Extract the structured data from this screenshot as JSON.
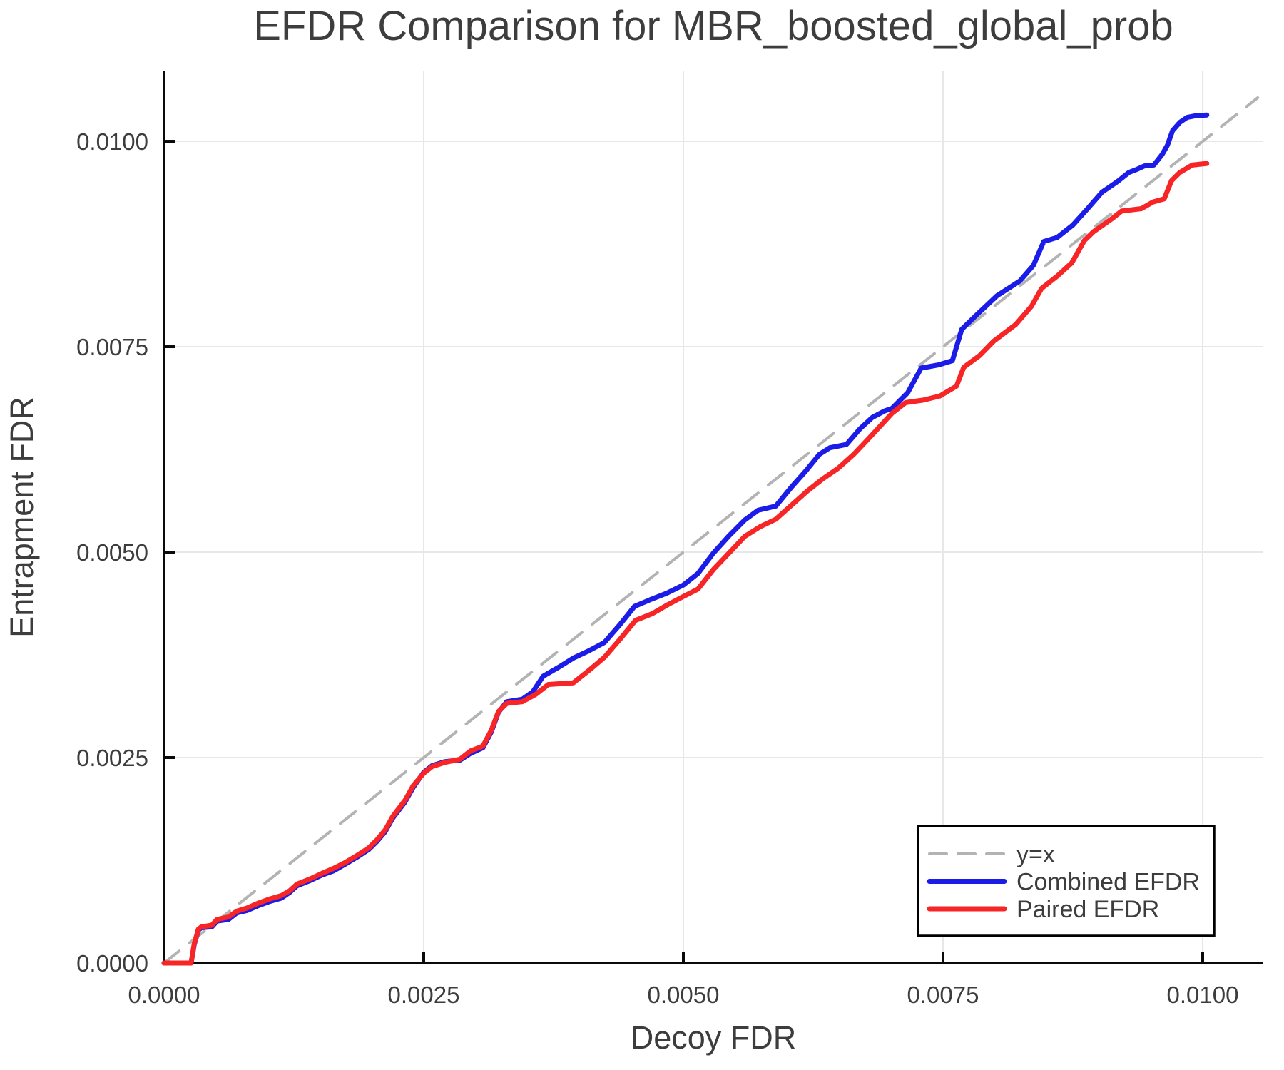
{
  "chart_data": {
    "type": "line",
    "title": "EFDR Comparison for MBR_boosted_global_prob",
    "xlabel": "Decoy FDR",
    "ylabel": "Entrapment FDR",
    "xlim": [
      0,
      0.010577
    ],
    "ylim": [
      0,
      0.010851
    ],
    "grid": true,
    "x_ticks": [
      0,
      0.0025,
      0.005,
      0.0075,
      0.01
    ],
    "x_tick_labels": [
      "0.0000",
      "0.0025",
      "0.0050",
      "0.0075",
      "0.0100"
    ],
    "y_ticks": [
      0,
      0.0025,
      0.005,
      0.0075,
      0.01
    ],
    "y_tick_labels": [
      "0.0000",
      "0.0025",
      "0.0050",
      "0.0075",
      "0.0100"
    ],
    "colors": {
      "text": "#3d3d3d",
      "spine": "#0a0a0a",
      "grid": "#e7e7e7",
      "legend_border": "#000000",
      "legend_background": "#ffffff"
    },
    "legend": {
      "position": "lower right",
      "entries": [
        {
          "label": "y=x",
          "series_index": 0
        },
        {
          "label": "Combined EFDR",
          "series_index": 1
        },
        {
          "label": "Paired EFDR",
          "series_index": 2
        }
      ]
    },
    "series": [
      {
        "name": "y=x",
        "style": "dashed",
        "color": "#b3b3b3",
        "points": [
          [
            0,
            0
          ],
          [
            0.01053,
            0.01053
          ]
        ]
      },
      {
        "name": "Combined EFDR",
        "style": "solid",
        "color": "#1c1ce8",
        "points": [
          [
            0.0,
            0.0
          ],
          [
            0.00026,
            0.0
          ],
          [
            0.00029,
            0.00022
          ],
          [
            0.00033,
            0.0004
          ],
          [
            0.00036,
            0.00043
          ],
          [
            0.00046,
            0.00044
          ],
          [
            0.00051,
            0.00051
          ],
          [
            0.00062,
            0.00053
          ],
          [
            0.0007,
            0.00061
          ],
          [
            0.0008,
            0.00064
          ],
          [
            0.00091,
            0.0007
          ],
          [
            0.00102,
            0.00075
          ],
          [
            0.00113,
            0.00079
          ],
          [
            0.00121,
            0.00086
          ],
          [
            0.00128,
            0.00094
          ],
          [
            0.0014,
            0.001
          ],
          [
            0.00152,
            0.00107
          ],
          [
            0.00163,
            0.00112
          ],
          [
            0.00174,
            0.0012
          ],
          [
            0.00186,
            0.00129
          ],
          [
            0.00197,
            0.00138
          ],
          [
            0.00205,
            0.00148
          ],
          [
            0.00213,
            0.0016
          ],
          [
            0.0022,
            0.00176
          ],
          [
            0.00232,
            0.00196
          ],
          [
            0.0024,
            0.00214
          ],
          [
            0.0025,
            0.00232
          ],
          [
            0.00258,
            0.0024
          ],
          [
            0.0027,
            0.00245
          ],
          [
            0.00285,
            0.00247
          ],
          [
            0.00295,
            0.00255
          ],
          [
            0.00307,
            0.00262
          ],
          [
            0.00315,
            0.00281
          ],
          [
            0.00322,
            0.00305
          ],
          [
            0.0033,
            0.00318
          ],
          [
            0.00345,
            0.00321
          ],
          [
            0.00355,
            0.0033
          ],
          [
            0.00365,
            0.00349
          ],
          [
            0.0038,
            0.0036
          ],
          [
            0.00394,
            0.00371
          ],
          [
            0.00409,
            0.0038
          ],
          [
            0.00424,
            0.0039
          ],
          [
            0.00439,
            0.00412
          ],
          [
            0.00453,
            0.00434
          ],
          [
            0.00468,
            0.00442
          ],
          [
            0.00484,
            0.0045
          ],
          [
            0.005,
            0.0046
          ],
          [
            0.00514,
            0.00474
          ],
          [
            0.00529,
            0.00499
          ],
          [
            0.00544,
            0.0052
          ],
          [
            0.00559,
            0.00539
          ],
          [
            0.00572,
            0.00551
          ],
          [
            0.00589,
            0.00556
          ],
          [
            0.00604,
            0.00579
          ],
          [
            0.00618,
            0.00599
          ],
          [
            0.00631,
            0.00619
          ],
          [
            0.00641,
            0.00627
          ],
          [
            0.00657,
            0.00631
          ],
          [
            0.0067,
            0.0065
          ],
          [
            0.00682,
            0.00664
          ],
          [
            0.00694,
            0.00672
          ],
          [
            0.00701,
            0.00675
          ],
          [
            0.00716,
            0.00694
          ],
          [
            0.00729,
            0.00724
          ],
          [
            0.00746,
            0.00728
          ],
          [
            0.00759,
            0.00733
          ],
          [
            0.00768,
            0.00771
          ],
          [
            0.00781,
            0.00787
          ],
          [
            0.00802,
            0.00812
          ],
          [
            0.00824,
            0.0083
          ],
          [
            0.00837,
            0.00849
          ],
          [
            0.00847,
            0.00878
          ],
          [
            0.0086,
            0.00883
          ],
          [
            0.00875,
            0.00898
          ],
          [
            0.0089,
            0.00919
          ],
          [
            0.00903,
            0.00938
          ],
          [
            0.00918,
            0.00951
          ],
          [
            0.00929,
            0.00962
          ],
          [
            0.00937,
            0.00966
          ],
          [
            0.00944,
            0.0097
          ],
          [
            0.00953,
            0.00971
          ],
          [
            0.00961,
            0.00984
          ],
          [
            0.00966,
            0.00995
          ],
          [
            0.00971,
            0.01013
          ],
          [
            0.00978,
            0.01023
          ],
          [
            0.00985,
            0.01029
          ],
          [
            0.00993,
            0.01031
          ],
          [
            0.01004,
            0.01032
          ]
        ]
      },
      {
        "name": "Paired EFDR",
        "style": "solid",
        "color": "#f72525",
        "points": [
          [
            0.0,
            0.0
          ],
          [
            0.00026,
            0.0
          ],
          [
            0.00029,
            0.00023
          ],
          [
            0.00033,
            0.00041
          ],
          [
            0.00036,
            0.00044
          ],
          [
            0.00046,
            0.00046
          ],
          [
            0.00051,
            0.00053
          ],
          [
            0.00062,
            0.00056
          ],
          [
            0.0007,
            0.00063
          ],
          [
            0.0008,
            0.00067
          ],
          [
            0.00091,
            0.00073
          ],
          [
            0.00102,
            0.00078
          ],
          [
            0.00113,
            0.00082
          ],
          [
            0.00121,
            0.00088
          ],
          [
            0.00128,
            0.00096
          ],
          [
            0.0014,
            0.00102
          ],
          [
            0.00152,
            0.00109
          ],
          [
            0.00163,
            0.00115
          ],
          [
            0.00174,
            0.00122
          ],
          [
            0.00186,
            0.00131
          ],
          [
            0.00197,
            0.0014
          ],
          [
            0.00205,
            0.0015
          ],
          [
            0.00213,
            0.00162
          ],
          [
            0.0022,
            0.00178
          ],
          [
            0.00232,
            0.00198
          ],
          [
            0.0024,
            0.00216
          ],
          [
            0.0025,
            0.00231
          ],
          [
            0.00258,
            0.00239
          ],
          [
            0.0027,
            0.00244
          ],
          [
            0.00285,
            0.00248
          ],
          [
            0.00295,
            0.00258
          ],
          [
            0.00307,
            0.00264
          ],
          [
            0.00315,
            0.00283
          ],
          [
            0.00322,
            0.00306
          ],
          [
            0.0033,
            0.00316
          ],
          [
            0.00345,
            0.00318
          ],
          [
            0.00358,
            0.00327
          ],
          [
            0.0037,
            0.00339
          ],
          [
            0.00394,
            0.00341
          ],
          [
            0.00409,
            0.00356
          ],
          [
            0.00424,
            0.00372
          ],
          [
            0.00439,
            0.00394
          ],
          [
            0.00454,
            0.00417
          ],
          [
            0.0047,
            0.00425
          ],
          [
            0.00485,
            0.00436
          ],
          [
            0.005,
            0.00446
          ],
          [
            0.00514,
            0.00455
          ],
          [
            0.00529,
            0.00479
          ],
          [
            0.00544,
            0.00499
          ],
          [
            0.00559,
            0.00519
          ],
          [
            0.00574,
            0.00531
          ],
          [
            0.00589,
            0.0054
          ],
          [
            0.00604,
            0.00557
          ],
          [
            0.00619,
            0.00574
          ],
          [
            0.00634,
            0.00589
          ],
          [
            0.00649,
            0.00602
          ],
          [
            0.00664,
            0.00619
          ],
          [
            0.00679,
            0.00639
          ],
          [
            0.0069,
            0.00654
          ],
          [
            0.00701,
            0.00669
          ],
          [
            0.00714,
            0.00682
          ],
          [
            0.00731,
            0.00685
          ],
          [
            0.00747,
            0.0069
          ],
          [
            0.00763,
            0.00702
          ],
          [
            0.0077,
            0.00725
          ],
          [
            0.00785,
            0.00739
          ],
          [
            0.00799,
            0.00757
          ],
          [
            0.0082,
            0.00777
          ],
          [
            0.00835,
            0.00799
          ],
          [
            0.00845,
            0.00821
          ],
          [
            0.0086,
            0.00836
          ],
          [
            0.00874,
            0.00852
          ],
          [
            0.00886,
            0.00879
          ],
          [
            0.00895,
            0.0089
          ],
          [
            0.00913,
            0.00906
          ],
          [
            0.00922,
            0.00915
          ],
          [
            0.00941,
            0.00918
          ],
          [
            0.00952,
            0.00926
          ],
          [
            0.00963,
            0.0093
          ],
          [
            0.0097,
            0.00952
          ],
          [
            0.00978,
            0.00962
          ],
          [
            0.0099,
            0.00971
          ],
          [
            0.01004,
            0.00973
          ]
        ]
      }
    ]
  }
}
